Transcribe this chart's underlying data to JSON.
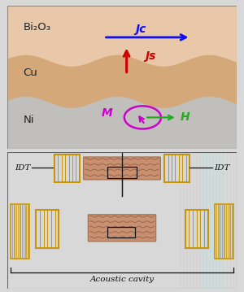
{
  "fig_width": 3.0,
  "fig_height": 3.59,
  "bg_color": "#d8d8d8",
  "top_panel_bg": "#e8e8e8",
  "bottom_panel_bg": "#5bbcbe",
  "bi2o3_color": "#e8c8a8",
  "cu_color": "#d4a878",
  "ni_color": "#c0bfbc",
  "layer_labels": [
    "Bi₂O₃",
    "Cu",
    "Ni"
  ],
  "jc_label": "Jc",
  "js_label": "Js",
  "m_label": "M",
  "h_label": "H",
  "idt_label": "IDT",
  "acoustic_label": "Acoustic cavity",
  "arrow_blue": "#1010ee",
  "arrow_red": "#cc0000",
  "arrow_green": "#22aa22",
  "circle_magenta": "#cc00cc",
  "idt_gold": "#c8950a",
  "idt_gold_fill": "#e8b830",
  "sample_color": "#c89070",
  "connector_color": "#111111",
  "wave_color": "#996644",
  "teal_stripe": "#8dd8da"
}
